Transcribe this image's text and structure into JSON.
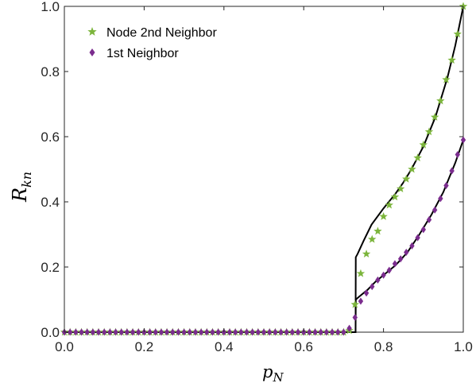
{
  "chart_data": {
    "type": "scatter",
    "xlabel": "p",
    "xlabel_sub": "N",
    "ylabel": "R",
    "ylabel_sub": "kn",
    "xlim": [
      0,
      1
    ],
    "ylim": [
      0,
      1
    ],
    "xticks": [
      0,
      0.2,
      0.4,
      0.6,
      0.8,
      1.0
    ],
    "xtick_labels": [
      "0.0",
      "0.2",
      "0.4",
      "0.6",
      "0.8",
      "1.0"
    ],
    "yticks": [
      0,
      0.2,
      0.4,
      0.6,
      0.8,
      1.0
    ],
    "ytick_labels": [
      "0.0",
      "0.2",
      "0.4",
      "0.6",
      "0.8",
      "1.0"
    ],
    "grid": false,
    "legend_position": "top-left",
    "series": [
      {
        "name": "Node 2nd Neighbor",
        "marker": "star",
        "color": "#7cb53c",
        "points": [
          [
            0.0,
            0
          ],
          [
            0.0143,
            0
          ],
          [
            0.0286,
            0
          ],
          [
            0.0429,
            0
          ],
          [
            0.0571,
            0
          ],
          [
            0.0714,
            0
          ],
          [
            0.0857,
            0
          ],
          [
            0.1,
            0
          ],
          [
            0.1143,
            0
          ],
          [
            0.1286,
            0
          ],
          [
            0.1429,
            0
          ],
          [
            0.1571,
            0
          ],
          [
            0.1714,
            0
          ],
          [
            0.1857,
            0
          ],
          [
            0.2,
            0
          ],
          [
            0.2143,
            0
          ],
          [
            0.2286,
            0
          ],
          [
            0.2429,
            0
          ],
          [
            0.2571,
            0
          ],
          [
            0.2714,
            0
          ],
          [
            0.2857,
            0
          ],
          [
            0.3,
            0
          ],
          [
            0.3143,
            0
          ],
          [
            0.3286,
            0
          ],
          [
            0.3429,
            0
          ],
          [
            0.3571,
            0
          ],
          [
            0.3714,
            0
          ],
          [
            0.3857,
            0
          ],
          [
            0.4,
            0
          ],
          [
            0.4143,
            0
          ],
          [
            0.4286,
            0
          ],
          [
            0.4429,
            0
          ],
          [
            0.4571,
            0
          ],
          [
            0.4714,
            0
          ],
          [
            0.4857,
            0
          ],
          [
            0.5,
            0
          ],
          [
            0.5143,
            0
          ],
          [
            0.5286,
            0
          ],
          [
            0.5429,
            0
          ],
          [
            0.5571,
            0
          ],
          [
            0.5714,
            0
          ],
          [
            0.5857,
            0
          ],
          [
            0.6,
            0
          ],
          [
            0.6143,
            0
          ],
          [
            0.6286,
            0
          ],
          [
            0.6429,
            0
          ],
          [
            0.6571,
            0
          ],
          [
            0.6714,
            0
          ],
          [
            0.6857,
            0
          ],
          [
            0.7,
            0
          ],
          [
            0.7143,
            0.005
          ],
          [
            0.7286,
            0.085
          ],
          [
            0.7429,
            0.18
          ],
          [
            0.7571,
            0.24
          ],
          [
            0.7714,
            0.285
          ],
          [
            0.7857,
            0.31
          ],
          [
            0.8,
            0.355
          ],
          [
            0.8143,
            0.39
          ],
          [
            0.8286,
            0.415
          ],
          [
            0.8429,
            0.44
          ],
          [
            0.8571,
            0.47
          ],
          [
            0.8714,
            0.5
          ],
          [
            0.8857,
            0.535
          ],
          [
            0.9,
            0.575
          ],
          [
            0.9143,
            0.615
          ],
          [
            0.9286,
            0.66
          ],
          [
            0.9429,
            0.71
          ],
          [
            0.9571,
            0.775
          ],
          [
            0.9714,
            0.835
          ],
          [
            0.9857,
            0.915
          ],
          [
            1.0,
            1.0
          ]
        ]
      },
      {
        "name": "1st Neighbor",
        "marker": "diamond",
        "color": "#7b2d8e",
        "points": [
          [
            0.0,
            0
          ],
          [
            0.0143,
            0
          ],
          [
            0.0286,
            0
          ],
          [
            0.0429,
            0
          ],
          [
            0.0571,
            0
          ],
          [
            0.0714,
            0
          ],
          [
            0.0857,
            0
          ],
          [
            0.1,
            0
          ],
          [
            0.1143,
            0
          ],
          [
            0.1286,
            0
          ],
          [
            0.1429,
            0
          ],
          [
            0.1571,
            0
          ],
          [
            0.1714,
            0
          ],
          [
            0.1857,
            0
          ],
          [
            0.2,
            0
          ],
          [
            0.2143,
            0
          ],
          [
            0.2286,
            0
          ],
          [
            0.2429,
            0
          ],
          [
            0.2571,
            0
          ],
          [
            0.2714,
            0
          ],
          [
            0.2857,
            0
          ],
          [
            0.3,
            0
          ],
          [
            0.3143,
            0
          ],
          [
            0.3286,
            0
          ],
          [
            0.3429,
            0
          ],
          [
            0.3571,
            0
          ],
          [
            0.3714,
            0
          ],
          [
            0.3857,
            0
          ],
          [
            0.4,
            0
          ],
          [
            0.4143,
            0
          ],
          [
            0.4286,
            0
          ],
          [
            0.4429,
            0
          ],
          [
            0.4571,
            0
          ],
          [
            0.4714,
            0
          ],
          [
            0.4857,
            0
          ],
          [
            0.5,
            0
          ],
          [
            0.5143,
            0
          ],
          [
            0.5286,
            0
          ],
          [
            0.5429,
            0
          ],
          [
            0.5571,
            0
          ],
          [
            0.5714,
            0
          ],
          [
            0.5857,
            0
          ],
          [
            0.6,
            0
          ],
          [
            0.6143,
            0
          ],
          [
            0.6286,
            0
          ],
          [
            0.6429,
            0
          ],
          [
            0.6571,
            0
          ],
          [
            0.6714,
            0
          ],
          [
            0.6857,
            0
          ],
          [
            0.7,
            0
          ],
          [
            0.7143,
            0.012
          ],
          [
            0.7286,
            0.045
          ],
          [
            0.7429,
            0.095
          ],
          [
            0.7571,
            0.12
          ],
          [
            0.7714,
            0.14
          ],
          [
            0.7857,
            0.16
          ],
          [
            0.8,
            0.175
          ],
          [
            0.8143,
            0.19
          ],
          [
            0.8286,
            0.21
          ],
          [
            0.8429,
            0.225
          ],
          [
            0.8571,
            0.245
          ],
          [
            0.8714,
            0.265
          ],
          [
            0.8857,
            0.29
          ],
          [
            0.9,
            0.315
          ],
          [
            0.9143,
            0.345
          ],
          [
            0.9286,
            0.375
          ],
          [
            0.9429,
            0.41
          ],
          [
            0.9571,
            0.45
          ],
          [
            0.9714,
            0.495
          ],
          [
            0.9857,
            0.545
          ],
          [
            1.0,
            0.59
          ]
        ]
      },
      {
        "name": "",
        "style": "line",
        "color": "#000000",
        "points": [
          [
            0,
            0
          ],
          [
            0.7,
            0
          ],
          [
            0.73,
            0
          ],
          [
            0.7305,
            0.23
          ],
          [
            0.735,
            0.24
          ],
          [
            0.75,
            0.28
          ],
          [
            0.77,
            0.33
          ],
          [
            0.8,
            0.38
          ],
          [
            0.83,
            0.425
          ],
          [
            0.85,
            0.46
          ],
          [
            0.87,
            0.5
          ],
          [
            0.9,
            0.57
          ],
          [
            0.93,
            0.66
          ],
          [
            0.96,
            0.78
          ],
          [
            0.98,
            0.88
          ],
          [
            1.0,
            1.0
          ]
        ]
      },
      {
        "name": "",
        "style": "line",
        "color": "#000000",
        "points": [
          [
            0,
            0
          ],
          [
            0.73,
            0
          ],
          [
            0.7305,
            0.1
          ],
          [
            0.74,
            0.11
          ],
          [
            0.76,
            0.13
          ],
          [
            0.78,
            0.155
          ],
          [
            0.8,
            0.175
          ],
          [
            0.83,
            0.205
          ],
          [
            0.86,
            0.245
          ],
          [
            0.89,
            0.3
          ],
          [
            0.92,
            0.36
          ],
          [
            0.95,
            0.43
          ],
          [
            0.98,
            0.52
          ],
          [
            1.0,
            0.59
          ]
        ]
      }
    ]
  }
}
